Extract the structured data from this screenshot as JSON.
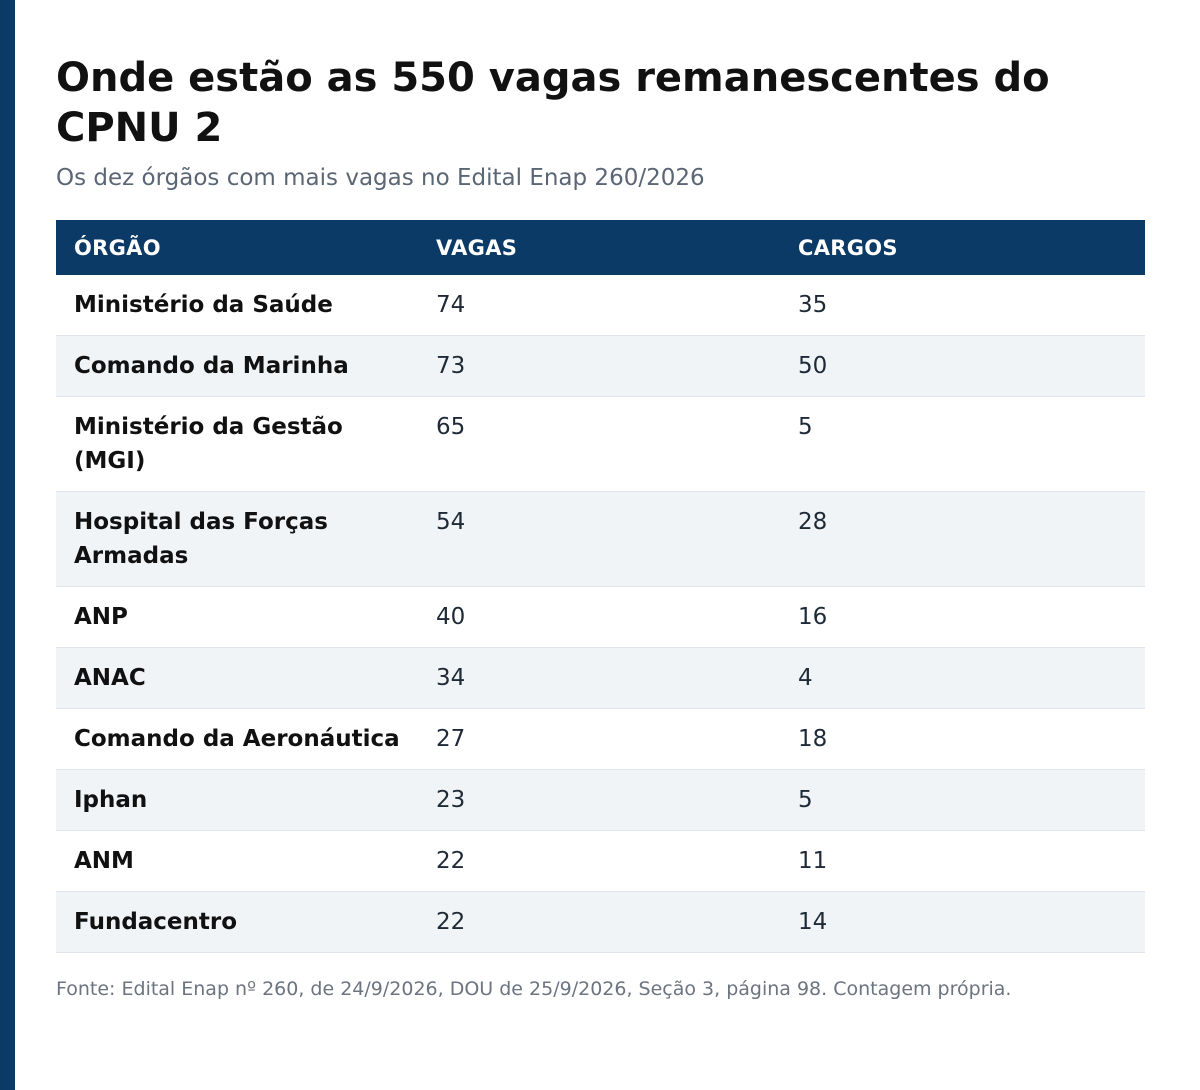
{
  "colors": {
    "accent": "#0b3a66",
    "stripe": "#f0f4f7",
    "title": "#111111",
    "subtitle": "#5b6675"
  },
  "chart_data": {
    "type": "table",
    "title": "Onde estão as 550 vagas remanescentes do CPNU 2",
    "subtitle": "Os dez órgãos com mais vagas no Edital Enap 260/2026",
    "columns": [
      "ÓRGÃO",
      "VAGAS",
      "CARGOS"
    ],
    "rows": [
      {
        "orgao": "Ministério da Saúde",
        "vagas": 74,
        "cargos": 35
      },
      {
        "orgao": "Comando da Marinha",
        "vagas": 73,
        "cargos": 50
      },
      {
        "orgao": "Ministério da Gestão (MGI)",
        "vagas": 65,
        "cargos": 5
      },
      {
        "orgao": "Hospital das Forças Armadas",
        "vagas": 54,
        "cargos": 28
      },
      {
        "orgao": "ANP",
        "vagas": 40,
        "cargos": 16
      },
      {
        "orgao": "ANAC",
        "vagas": 34,
        "cargos": 4
      },
      {
        "orgao": "Comando da Aeronáutica",
        "vagas": 27,
        "cargos": 18
      },
      {
        "orgao": "Iphan",
        "vagas": 23,
        "cargos": 5
      },
      {
        "orgao": "ANM",
        "vagas": 22,
        "cargos": 11
      },
      {
        "orgao": "Fundacentro",
        "vagas": 22,
        "cargos": 14
      }
    ],
    "source": "Fonte: Edital Enap nº 260, de 24/9/2026, DOU de 25/9/2026, Seção 3, página 98. Contagem própria."
  }
}
